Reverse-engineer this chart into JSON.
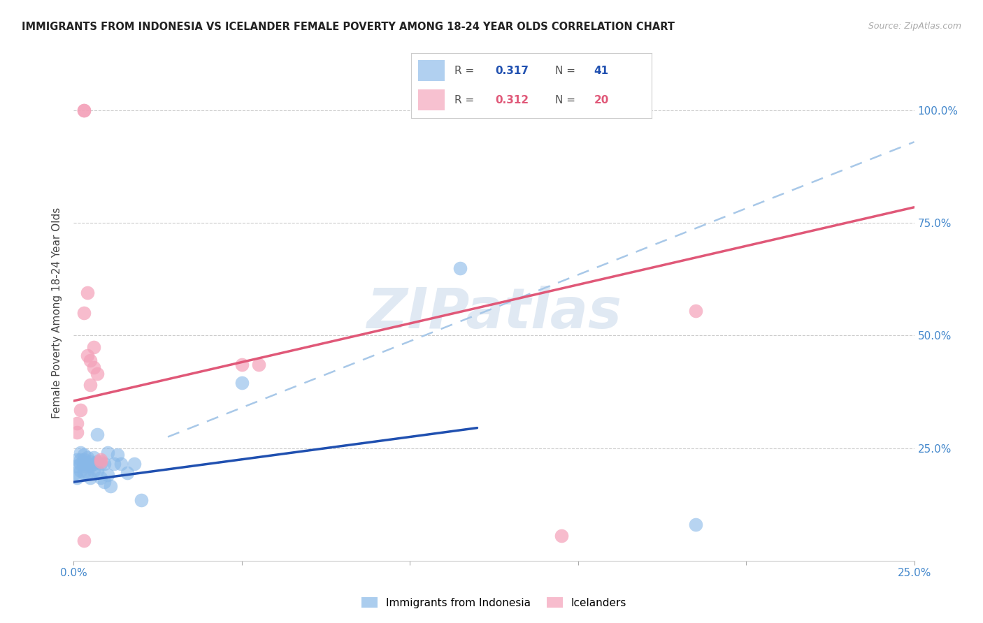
{
  "title": "IMMIGRANTS FROM INDONESIA VS ICELANDER FEMALE POVERTY AMONG 18-24 YEAR OLDS CORRELATION CHART",
  "source": "Source: ZipAtlas.com",
  "ylabel": "Female Poverty Among 18-24 Year Olds",
  "xlim": [
    0.0,
    0.25
  ],
  "ylim": [
    0.0,
    1.1
  ],
  "xticks": [
    0.0,
    0.05,
    0.1,
    0.15,
    0.2,
    0.25
  ],
  "xtick_labels": [
    "0.0%",
    "",
    "",
    "",
    "",
    "25.0%"
  ],
  "yticks": [
    0.0,
    0.25,
    0.5,
    0.75,
    1.0
  ],
  "right_ytick_labels": [
    "",
    "25.0%",
    "50.0%",
    "75.0%",
    "100.0%"
  ],
  "blue_color": "#88b8e8",
  "pink_color": "#f4a0b8",
  "blue_line_color": "#2050b0",
  "pink_line_color": "#e05878",
  "dashed_line_color": "#a8c8e8",
  "watermark": "ZIPatlas",
  "legend_R_blue": "0.317",
  "legend_N_blue": "41",
  "legend_R_pink": "0.312",
  "legend_N_pink": "20",
  "blue_x": [
    0.0005,
    0.001,
    0.001,
    0.001,
    0.002,
    0.002,
    0.002,
    0.002,
    0.003,
    0.003,
    0.003,
    0.003,
    0.003,
    0.004,
    0.004,
    0.004,
    0.005,
    0.005,
    0.005,
    0.006,
    0.006,
    0.006,
    0.007,
    0.007,
    0.007,
    0.008,
    0.008,
    0.009,
    0.009,
    0.01,
    0.01,
    0.011,
    0.012,
    0.013,
    0.014,
    0.016,
    0.018,
    0.02,
    0.05,
    0.115,
    0.185
  ],
  "blue_y": [
    0.195,
    0.185,
    0.21,
    0.225,
    0.2,
    0.215,
    0.225,
    0.24,
    0.195,
    0.21,
    0.215,
    0.225,
    0.235,
    0.195,
    0.215,
    0.23,
    0.185,
    0.21,
    0.22,
    0.2,
    0.215,
    0.23,
    0.2,
    0.22,
    0.28,
    0.185,
    0.215,
    0.175,
    0.215,
    0.19,
    0.24,
    0.165,
    0.215,
    0.235,
    0.215,
    0.195,
    0.215,
    0.135,
    0.395,
    0.65,
    0.08
  ],
  "pink_x": [
    0.001,
    0.001,
    0.002,
    0.003,
    0.003,
    0.004,
    0.004,
    0.005,
    0.005,
    0.006,
    0.006,
    0.007,
    0.008,
    0.05,
    0.055,
    0.003,
    0.185,
    0.145,
    0.003,
    0.008
  ],
  "pink_y": [
    0.285,
    0.305,
    0.335,
    1.0,
    1.0,
    0.595,
    0.455,
    0.39,
    0.445,
    0.43,
    0.475,
    0.415,
    0.225,
    0.435,
    0.435,
    0.55,
    0.555,
    0.055,
    0.045,
    0.22
  ],
  "blue_trend_x": [
    0.0,
    0.12
  ],
  "blue_trend_y": [
    0.175,
    0.295
  ],
  "pink_trend_x": [
    0.0,
    0.25
  ],
  "pink_trend_y": [
    0.355,
    0.785
  ],
  "dash_trend_x": [
    0.028,
    0.25
  ],
  "dash_trend_y": [
    0.275,
    0.93
  ]
}
